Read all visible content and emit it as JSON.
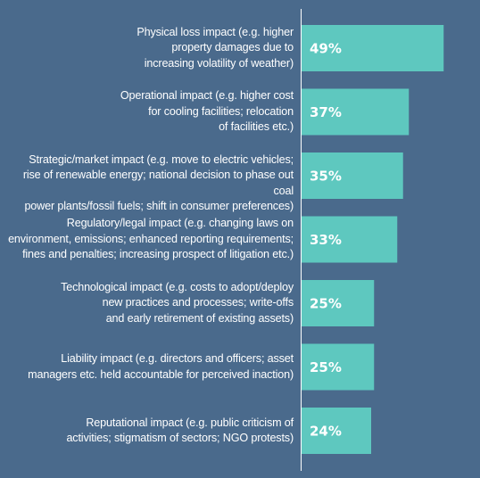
{
  "chart_data": {
    "type": "bar",
    "orientation": "horizontal",
    "categories": [
      "Physical loss impact (e.g. higher\nproperty damages due to\nincreasing volatility of weather)",
      "Operational impact (e.g. higher cost\nfor cooling facilities; relocation\nof facilities etc.)",
      "Strategic/market impact (e.g. move to electric vehicles;\nrise of renewable energy; national decision to phase out coal\npower plants/fossil fuels; shift in consumer preferences)",
      "Regulatory/legal impact (e.g. changing laws on\nenvironment, emissions; enhanced reporting requirements;\nfines and penalties; increasing prospect of litigation etc.)",
      "Technological impact (e.g. costs to adopt/deploy\nnew practices and processes; write-offs\nand early retirement of existing assets)",
      "Liability impact (e.g. directors and officers; asset\nmanagers etc. held accountable for perceived inaction)",
      "Reputational impact (e.g. public criticism of\nactivities; stigmatism of sectors; NGO protests)"
    ],
    "values": [
      49,
      37,
      35,
      33,
      25,
      25,
      24
    ],
    "value_labels": [
      "49%",
      "37%",
      "35%",
      "33%",
      "25%",
      "25%",
      "24%"
    ],
    "xlim": [
      0,
      50
    ],
    "bar_color": "#5ec8bf",
    "background_color": "#4a6a8c",
    "axis_color": "#ffffff",
    "grid": false
  }
}
